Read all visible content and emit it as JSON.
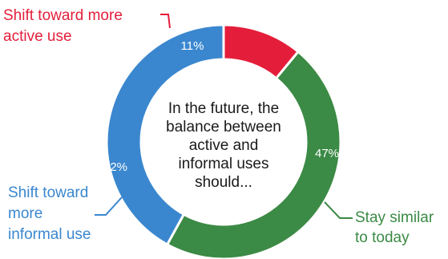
{
  "chart_data": {
    "type": "pie",
    "donut": true,
    "center_text": [
      "In the future, the",
      "balance between",
      "active and",
      "informal uses",
      "should..."
    ],
    "slices": [
      {
        "label": [
          "Shift toward more",
          "active use"
        ],
        "value": 11,
        "value_label": "11%",
        "color": "#e41e3a"
      },
      {
        "label": [
          "Stay similar",
          "to today"
        ],
        "value": 47,
        "value_label": "47%",
        "color": "#3b8a45"
      },
      {
        "label": [
          "Shift toward",
          "more",
          "informal use"
        ],
        "value": 42,
        "value_label": "42%",
        "color": "#3a87cf"
      }
    ]
  }
}
